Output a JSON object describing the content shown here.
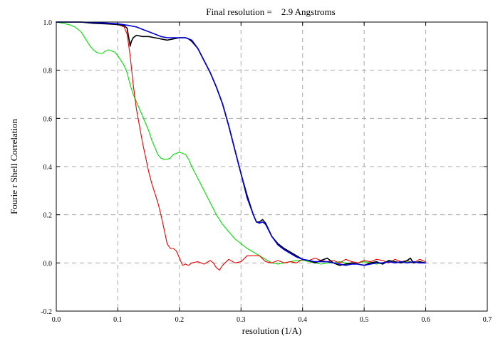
{
  "chart_data": {
    "type": "line",
    "title": "Final resolution =    2.9 Angstroms",
    "xlabel": "resolution (1/A)",
    "ylabel": "Fourie r Shell Correlation",
    "xlim": [
      0.0,
      0.7
    ],
    "ylim": [
      -0.2,
      1.0
    ],
    "xticks": [
      0.0,
      0.1,
      0.2,
      0.3,
      0.4,
      0.5,
      0.6,
      0.7
    ],
    "xtick_labels": [
      "0.0",
      "0.1",
      "0.2",
      "0.3",
      "0.4",
      "0.5",
      "0.6",
      "0.7"
    ],
    "yticks": [
      -0.2,
      0.0,
      0.2,
      0.4,
      0.6,
      0.8,
      1.0
    ],
    "ytick_labels": [
      "-0.2",
      "0.0",
      "0.2",
      "0.4",
      "0.6",
      "0.8",
      "1.0"
    ],
    "grid": true,
    "series": [
      {
        "color": "#00dd00",
        "x": [
          0.0,
          0.02,
          0.03,
          0.04,
          0.045,
          0.05,
          0.055,
          0.06,
          0.065,
          0.07,
          0.075,
          0.08,
          0.085,
          0.09,
          0.095,
          0.1,
          0.105,
          0.11,
          0.115,
          0.12,
          0.125,
          0.13,
          0.135,
          0.14,
          0.145,
          0.15,
          0.155,
          0.16,
          0.165,
          0.17,
          0.175,
          0.18,
          0.185,
          0.19,
          0.195,
          0.2,
          0.205,
          0.21,
          0.215,
          0.22,
          0.23,
          0.24,
          0.25,
          0.26,
          0.27,
          0.28,
          0.29,
          0.3,
          0.31,
          0.32,
          0.33,
          0.34,
          0.35,
          0.36,
          0.37,
          0.38,
          0.39,
          0.4,
          0.41,
          0.42,
          0.43,
          0.44,
          0.45,
          0.46,
          0.47,
          0.48,
          0.49,
          0.5,
          0.51,
          0.52,
          0.53,
          0.54,
          0.55,
          0.56,
          0.57,
          0.58,
          0.59,
          0.6
        ],
        "y": [
          1.0,
          0.99,
          0.98,
          0.96,
          0.94,
          0.92,
          0.9,
          0.885,
          0.875,
          0.87,
          0.87,
          0.88,
          0.885,
          0.88,
          0.875,
          0.86,
          0.84,
          0.82,
          0.79,
          0.74,
          0.7,
          0.67,
          0.64,
          0.61,
          0.58,
          0.55,
          0.51,
          0.48,
          0.45,
          0.435,
          0.43,
          0.43,
          0.435,
          0.45,
          0.455,
          0.46,
          0.455,
          0.45,
          0.43,
          0.4,
          0.35,
          0.3,
          0.25,
          0.2,
          0.16,
          0.13,
          0.1,
          0.08,
          0.06,
          0.045,
          0.03,
          0.015,
          0.0,
          -0.005,
          0.0,
          0.005,
          0.01,
          0.012,
          0.005,
          0.0,
          -0.005,
          0.0,
          0.0,
          0.005,
          0.0,
          -0.005,
          0.0,
          0.005,
          0.0,
          -0.005,
          0.0,
          0.01,
          0.005,
          0.0,
          0.005,
          0.0,
          0.005,
          0.0
        ]
      },
      {
        "color": "#ee0000",
        "x": [
          0.0,
          0.02,
          0.04,
          0.06,
          0.08,
          0.1,
          0.11,
          0.115,
          0.12,
          0.125,
          0.13,
          0.135,
          0.14,
          0.145,
          0.15,
          0.155,
          0.16,
          0.165,
          0.17,
          0.175,
          0.18,
          0.185,
          0.19,
          0.195,
          0.2,
          0.205,
          0.21,
          0.215,
          0.22,
          0.23,
          0.24,
          0.25,
          0.255,
          0.26,
          0.265,
          0.27,
          0.28,
          0.29,
          0.3,
          0.31,
          0.32,
          0.33,
          0.34,
          0.35,
          0.36,
          0.37,
          0.38,
          0.39,
          0.4,
          0.41,
          0.42,
          0.43,
          0.44,
          0.45,
          0.46,
          0.47,
          0.48,
          0.49,
          0.5,
          0.51,
          0.52,
          0.53,
          0.54,
          0.55,
          0.56,
          0.57,
          0.58,
          0.59,
          0.6
        ],
        "y": [
          1.0,
          1.0,
          1.0,
          0.998,
          0.995,
          0.99,
          0.98,
          0.95,
          0.86,
          0.74,
          0.64,
          0.57,
          0.5,
          0.44,
          0.38,
          0.33,
          0.29,
          0.25,
          0.2,
          0.14,
          0.08,
          0.06,
          0.06,
          0.05,
          0.02,
          -0.01,
          -0.005,
          -0.01,
          0.0,
          0.005,
          -0.005,
          0.01,
          0.0,
          -0.02,
          -0.03,
          -0.01,
          0.015,
          0.0,
          0.005,
          0.03,
          0.03,
          0.03,
          0.005,
          0.0,
          0.01,
          0.0,
          0.005,
          0.0,
          0.015,
          0.01,
          0.02,
          0.01,
          0.005,
          0.01,
          0.0,
          0.015,
          0.005,
          0.0,
          0.01,
          0.005,
          0.015,
          0.01,
          0.0,
          0.015,
          0.005,
          0.01,
          0.0,
          0.015,
          0.005
        ]
      },
      {
        "color": "#000000",
        "x": [
          0.0,
          0.02,
          0.04,
          0.06,
          0.08,
          0.1,
          0.11,
          0.115,
          0.118,
          0.12,
          0.122,
          0.125,
          0.13,
          0.14,
          0.15,
          0.16,
          0.17,
          0.18,
          0.19,
          0.2,
          0.21,
          0.215,
          0.22,
          0.23,
          0.24,
          0.25,
          0.26,
          0.27,
          0.28,
          0.29,
          0.3,
          0.31,
          0.32,
          0.325,
          0.33,
          0.335,
          0.34,
          0.35,
          0.36,
          0.37,
          0.38,
          0.39,
          0.4,
          0.41,
          0.42,
          0.43,
          0.44,
          0.45,
          0.46,
          0.47,
          0.48,
          0.49,
          0.5,
          0.51,
          0.52,
          0.53,
          0.54,
          0.55,
          0.56,
          0.57,
          0.575,
          0.58,
          0.59,
          0.6
        ],
        "y": [
          1.0,
          1.0,
          1.0,
          0.995,
          0.993,
          0.99,
          0.985,
          0.975,
          0.93,
          0.9,
          0.92,
          0.935,
          0.945,
          0.94,
          0.94,
          0.935,
          0.93,
          0.925,
          0.93,
          0.935,
          0.935,
          0.93,
          0.92,
          0.89,
          0.84,
          0.79,
          0.73,
          0.66,
          0.57,
          0.47,
          0.37,
          0.28,
          0.2,
          0.17,
          0.17,
          0.18,
          0.165,
          0.11,
          0.08,
          0.06,
          0.045,
          0.03,
          0.015,
          0.01,
          0.0,
          0.01,
          0.02,
          0.0,
          -0.01,
          -0.005,
          0.0,
          -0.005,
          -0.01,
          0.0,
          0.005,
          -0.005,
          0.01,
          0.005,
          0.0,
          0.01,
          0.02,
          0.0,
          0.005,
          0.0
        ]
      },
      {
        "color": "#0000dd",
        "x": [
          0.0,
          0.02,
          0.04,
          0.06,
          0.08,
          0.1,
          0.12,
          0.13,
          0.14,
          0.15,
          0.16,
          0.17,
          0.18,
          0.19,
          0.2,
          0.21,
          0.22,
          0.23,
          0.24,
          0.25,
          0.26,
          0.27,
          0.28,
          0.29,
          0.3,
          0.31,
          0.32,
          0.325,
          0.33,
          0.335,
          0.34,
          0.35,
          0.36,
          0.37,
          0.38,
          0.39,
          0.4,
          0.41,
          0.42,
          0.43,
          0.44,
          0.45,
          0.46,
          0.47,
          0.48,
          0.49,
          0.5,
          0.51,
          0.52,
          0.53,
          0.54,
          0.55,
          0.56,
          0.57,
          0.58,
          0.59,
          0.6
        ],
        "y": [
          1.0,
          1.0,
          1.0,
          0.998,
          0.996,
          0.993,
          0.985,
          0.98,
          0.97,
          0.96,
          0.95,
          0.94,
          0.935,
          0.935,
          0.935,
          0.935,
          0.925,
          0.89,
          0.84,
          0.79,
          0.73,
          0.66,
          0.57,
          0.47,
          0.37,
          0.27,
          0.2,
          0.17,
          0.165,
          0.17,
          0.16,
          0.11,
          0.075,
          0.055,
          0.04,
          0.025,
          0.015,
          0.01,
          0.005,
          0.005,
          0.005,
          0.0,
          -0.005,
          -0.01,
          -0.005,
          -0.005,
          -0.01,
          -0.005,
          0.0,
          0.0,
          0.005,
          0.0,
          0.005,
          0.0,
          0.005,
          0.0,
          0.0
        ]
      }
    ]
  }
}
